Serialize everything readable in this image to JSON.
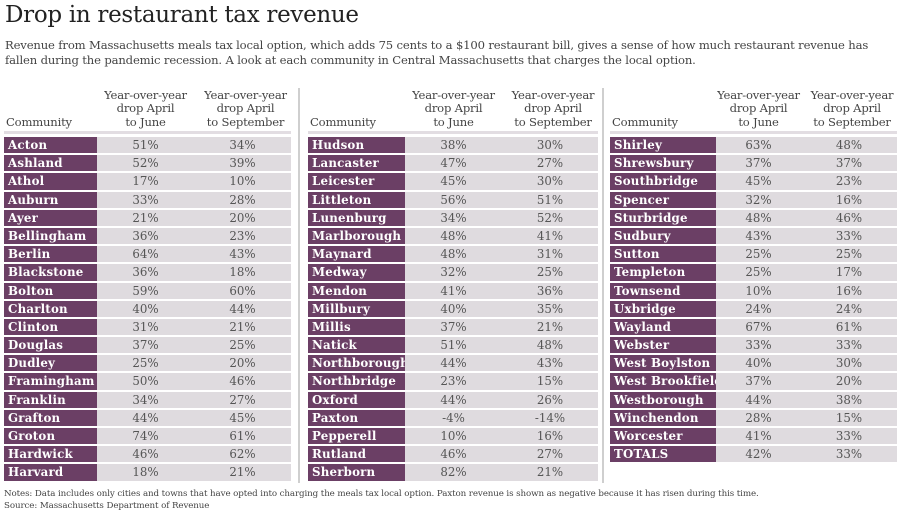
{
  "title": "Drop in restaurant tax revenue",
  "subtitle": "Revenue from Massachusetts meals tax local option, which adds 75 cents to a $100 restaurant bill, gives a sense of how much restaurant revenue has fallen during the pandemic recession. A look at each community in Central Massachusetts that charges the local option.",
  "headers": {
    "community": "Community",
    "june": [
      "Year-over-year",
      "drop April",
      "to June"
    ],
    "september": [
      "Year-over-year",
      "drop April",
      "to September"
    ]
  },
  "colors": {
    "name_bg": "#6b3f65",
    "value_bg": "#dfdbdf",
    "divider": "#cfcfcf"
  },
  "notes": "Notes: Data includes only cities and towns that have opted into charging the meals tax local option. Paxton revenue is shown as negative because it has risen during this time.",
  "source": "Source: Massachusetts Department of Revenue",
  "chart_data": {
    "type": "table",
    "title": "Drop in restaurant tax revenue",
    "columns": [
      "Community",
      "Year-over-year drop April to June",
      "Year-over-year drop April to September"
    ],
    "sections": [
      [
        [
          "Acton",
          "51%",
          "34%"
        ],
        [
          "Ashland",
          "52%",
          "39%"
        ],
        [
          "Athol",
          "17%",
          "10%"
        ],
        [
          "Auburn",
          "33%",
          "28%"
        ],
        [
          "Ayer",
          "21%",
          "20%"
        ],
        [
          "Bellingham",
          "36%",
          "23%"
        ],
        [
          "Berlin",
          "64%",
          "43%"
        ],
        [
          "Blackstone",
          "36%",
          "18%"
        ],
        [
          "Bolton",
          "59%",
          "60%"
        ],
        [
          "Charlton",
          "40%",
          "44%"
        ],
        [
          "Clinton",
          "31%",
          "21%"
        ],
        [
          "Douglas",
          "37%",
          "25%"
        ],
        [
          "Dudley",
          "25%",
          "20%"
        ],
        [
          "Framingham",
          "50%",
          "46%"
        ],
        [
          "Franklin",
          "34%",
          "27%"
        ],
        [
          "Grafton",
          "44%",
          "45%"
        ],
        [
          "Groton",
          "74%",
          "61%"
        ],
        [
          "Hardwick",
          "46%",
          "62%"
        ],
        [
          "Harvard",
          "18%",
          "21%"
        ]
      ],
      [
        [
          "Hudson",
          "38%",
          "30%"
        ],
        [
          "Lancaster",
          "47%",
          "27%"
        ],
        [
          "Leicester",
          "45%",
          "30%"
        ],
        [
          "Littleton",
          "56%",
          "51%"
        ],
        [
          "Lunenburg",
          "34%",
          "52%"
        ],
        [
          "Marlborough",
          "48%",
          "41%"
        ],
        [
          "Maynard",
          "48%",
          "31%"
        ],
        [
          "Medway",
          "32%",
          "25%"
        ],
        [
          "Mendon",
          "41%",
          "36%"
        ],
        [
          "Millbury",
          "40%",
          "35%"
        ],
        [
          "Millis",
          "37%",
          "21%"
        ],
        [
          "Natick",
          "51%",
          "48%"
        ],
        [
          "Northborough",
          "44%",
          "43%"
        ],
        [
          "Northbridge",
          "23%",
          "15%"
        ],
        [
          "Oxford",
          "44%",
          "26%"
        ],
        [
          "Paxton",
          "-4%",
          "-14%"
        ],
        [
          "Pepperell",
          "10%",
          "16%"
        ],
        [
          "Rutland",
          "46%",
          "27%"
        ],
        [
          "Sherborn",
          "82%",
          "21%"
        ]
      ],
      [
        [
          "Shirley",
          "63%",
          "48%"
        ],
        [
          "Shrewsbury",
          "37%",
          "37%"
        ],
        [
          "Southbridge",
          "45%",
          "23%"
        ],
        [
          "Spencer",
          "32%",
          "16%"
        ],
        [
          "Sturbridge",
          "48%",
          "46%"
        ],
        [
          "Sudbury",
          "43%",
          "33%"
        ],
        [
          "Sutton",
          "25%",
          "25%"
        ],
        [
          "Templeton",
          "25%",
          "17%"
        ],
        [
          "Townsend",
          "10%",
          "16%"
        ],
        [
          "Uxbridge",
          "24%",
          "24%"
        ],
        [
          "Wayland",
          "67%",
          "61%"
        ],
        [
          "Webster",
          "33%",
          "33%"
        ],
        [
          "West Boylston",
          "40%",
          "30%"
        ],
        [
          "West Brookfield",
          "37%",
          "20%"
        ],
        [
          "Westborough",
          "44%",
          "38%"
        ],
        [
          "Winchendon",
          "28%",
          "15%"
        ],
        [
          "Worcester",
          "41%",
          "33%"
        ],
        [
          "TOTALS",
          "42%",
          "33%"
        ]
      ]
    ]
  }
}
